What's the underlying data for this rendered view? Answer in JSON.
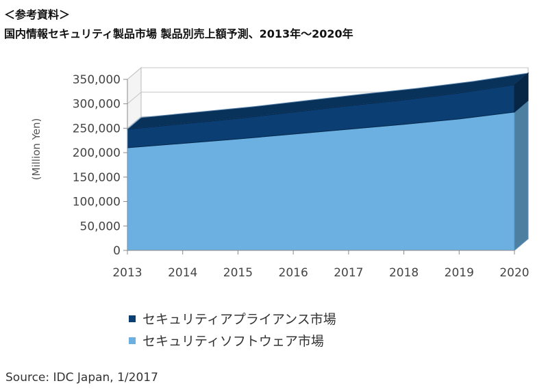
{
  "header": {
    "reference": "＜参考資料＞",
    "title": "国内情報セキュリティ製品市場 製品別売上額予測、2013年～2020年"
  },
  "chart_data": {
    "type": "area",
    "stacked": true,
    "x": [
      "2013",
      "2014",
      "2015",
      "2016",
      "2017",
      "2018",
      "2019",
      "2020"
    ],
    "series": [
      {
        "name": "セキュリティソフトウェア市場",
        "color": "#6bb0e0",
        "values": [
          210000,
          219000,
          228000,
          238000,
          248000,
          258000,
          269000,
          283000
        ]
      },
      {
        "name": "セキュリティアプライアンス市場",
        "color": "#0b3e72",
        "values": [
          38000,
          40000,
          42000,
          45000,
          48000,
          50000,
          53000,
          56000
        ]
      }
    ],
    "ylabel": "(Million Yen)",
    "ylim": [
      0,
      350000
    ],
    "yticks": [
      "0",
      "50,000",
      "100,000",
      "150,000",
      "200,000",
      "250,000",
      "300,000",
      "350,000"
    ],
    "grid": true,
    "legend_position": "bottom",
    "style": "3d"
  },
  "source": "Source: IDC Japan, 1/2017"
}
